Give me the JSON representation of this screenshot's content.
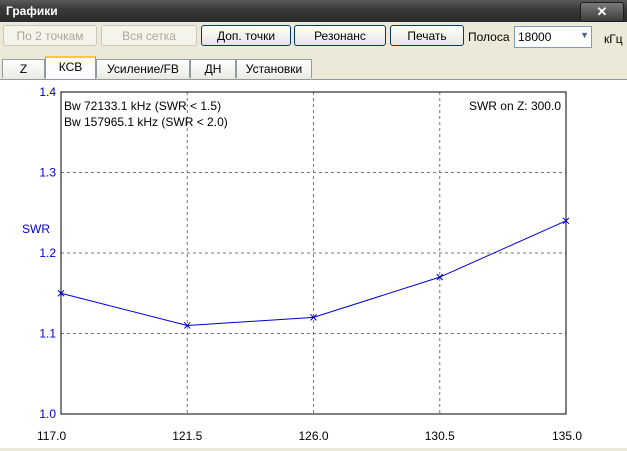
{
  "window": {
    "title": "Графики",
    "close_symbol": "✕"
  },
  "toolbar": {
    "by_2_points": "По 2 точкам",
    "full_grid": "Вся сетка",
    "extra_points": "Доп. точки",
    "resonance": "Резонанс",
    "print": "Печать",
    "band_label": "Полоса",
    "band_value": "18000",
    "band_unit": "кГц"
  },
  "tabs": [
    "Z",
    "КСВ",
    "Усиление/FB",
    "ДН",
    "Установки"
  ],
  "chart_data": {
    "type": "line",
    "ylabel": "SWR",
    "xlabel": "",
    "xlim": [
      117.0,
      135.0
    ],
    "ylim": [
      1.0,
      1.4
    ],
    "x_ticks": [
      "117.0",
      "121.5",
      "126.0",
      "130.5",
      "135.0"
    ],
    "y_ticks": [
      "1.0",
      "1.1",
      "1.2",
      "1.3",
      "1.4"
    ],
    "annotations": {
      "bw1": "Bw 72133.1 kHz (SWR < 1.5)",
      "bw2": "Bw 157965.1 kHz (SWR < 2.0)",
      "swr_on_z": "SWR on Z: 300.0"
    },
    "series": [
      {
        "x": [
          117.0,
          121.5,
          126.0,
          130.5,
          135.0
        ],
        "values": [
          1.15,
          1.11,
          1.12,
          1.17,
          1.24
        ]
      }
    ],
    "line_color": "#0000cc",
    "grid": true
  }
}
